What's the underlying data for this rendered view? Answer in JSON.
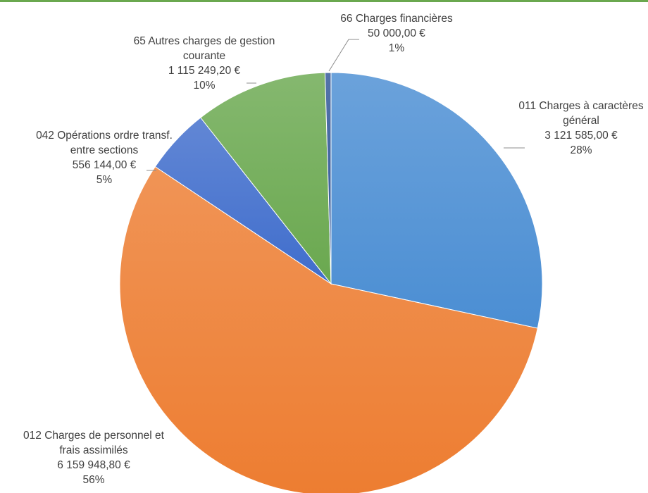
{
  "chart_data": {
    "type": "pie",
    "title": "",
    "slices": [
      {
        "label": "011  Charges à caractères général",
        "lines": [
          "011  Charges à caractères",
          "général"
        ],
        "value_text": "3 121 585,00 €",
        "percent_text": "28%",
        "value": 3121585.0,
        "color": "#4b8ed3"
      },
      {
        "label": "012  Charges de personnel et frais assimilés",
        "lines": [
          "012  Charges de personnel et",
          "frais assimilés"
        ],
        "value_text": "6 159 948,80 €",
        "percent_text": "56%",
        "value": 6159948.8,
        "color": "#ed7d31"
      },
      {
        "label": "042  Opérations ordre transf. entre sections",
        "lines": [
          "042  Opérations ordre transf.",
          "entre sections"
        ],
        "value_text": "556 144,00 €",
        "percent_text": "5%",
        "value": 556144.0,
        "color": "#3f6dcc"
      },
      {
        "label": "65  Autres charges de gestion courante",
        "lines": [
          "65  Autres charges de gestion",
          "courante"
        ],
        "value_text": "1 115 249,20 €",
        "percent_text": "10%",
        "value": 1115249.2,
        "color": "#6aa84f"
      },
      {
        "label": "66  Charges financières",
        "lines": [
          "66  Charges financières"
        ],
        "value_text": "50 000,00 €",
        "percent_text": "1%",
        "value": 50000.0,
        "color": "#2f5597"
      }
    ]
  }
}
